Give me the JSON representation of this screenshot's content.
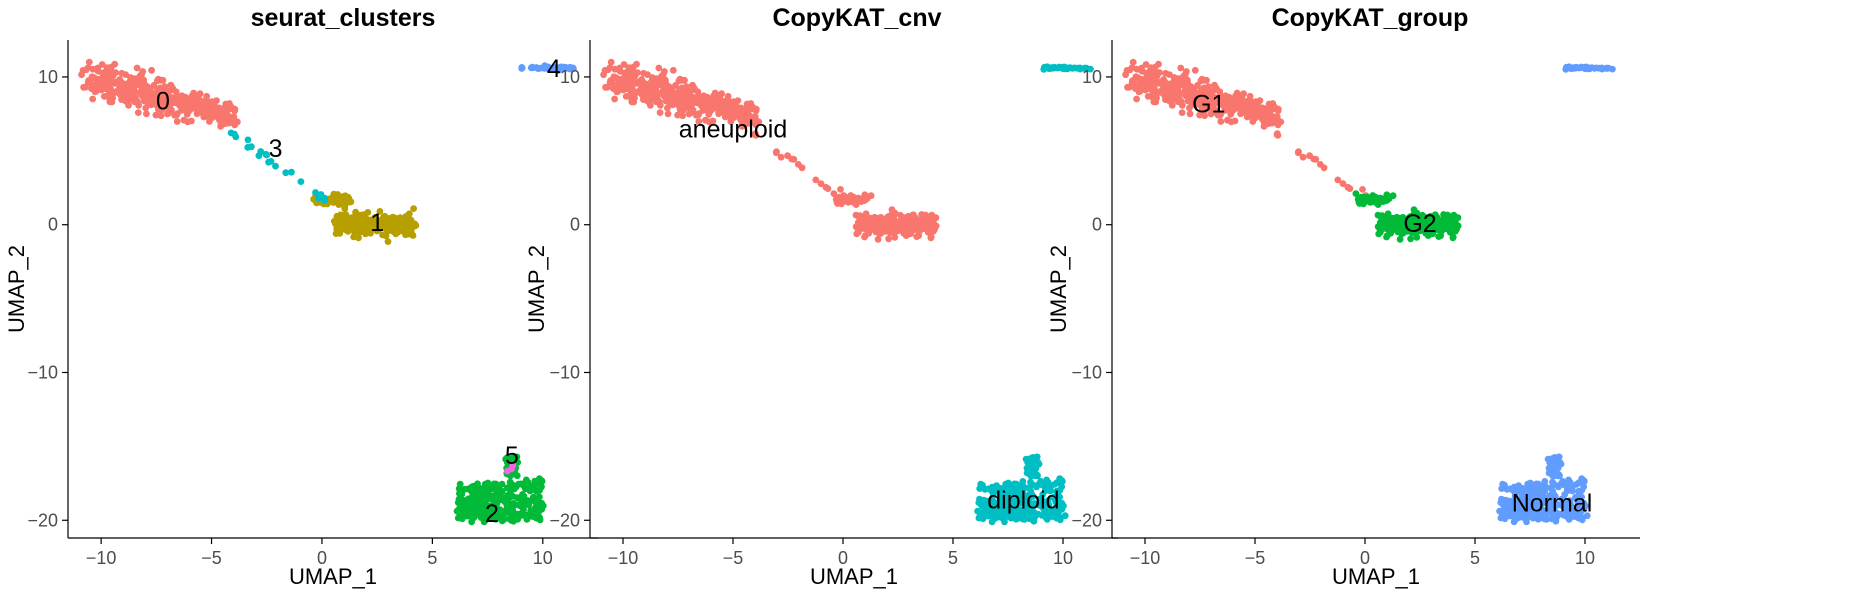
{
  "chart_data": [
    {
      "type": "scatter",
      "title": "seurat_clusters",
      "xlabel": "UMAP_1",
      "ylabel": "UMAP_2",
      "xlim": [
        -11.5,
        12.5
      ],
      "ylim": [
        -21.2,
        12.5
      ],
      "xticks": [
        -10,
        -5,
        0,
        5,
        10
      ],
      "yticks": [
        -20,
        -10,
        0,
        10
      ],
      "xtick_labels": [
        "−10",
        "−5",
        "0",
        "5",
        "10"
      ],
      "ytick_labels": [
        "−20",
        "−10",
        "0",
        "10"
      ],
      "grid": false,
      "legend": "none",
      "groups": [
        {
          "name": "0",
          "color": "#F8766D",
          "shape": "main",
          "count": 420
        },
        {
          "name": "1",
          "color": "#B79F00",
          "shape": "c1",
          "count": 300
        },
        {
          "name": "2",
          "color": "#00BA38",
          "shape": "normal",
          "count": 330
        },
        {
          "name": "3",
          "color": "#00BFC4",
          "shape": "bridge",
          "count": 22
        },
        {
          "name": "4",
          "color": "#619CFF",
          "shape": "top",
          "count": 40
        },
        {
          "name": "5",
          "color": "#F564E3",
          "shape": "c5",
          "count": 3
        }
      ],
      "labels": [
        {
          "text": "0",
          "x": -7.2,
          "y": 8.4
        },
        {
          "text": "3",
          "x": -2.1,
          "y": 5.2
        },
        {
          "text": "1",
          "x": 2.5,
          "y": 0.2
        },
        {
          "text": "4",
          "x": 10.5,
          "y": 10.6
        },
        {
          "text": "5",
          "x": 8.6,
          "y": -15.6
        },
        {
          "text": "2",
          "x": 7.7,
          "y": -19.5
        }
      ]
    },
    {
      "type": "scatter",
      "title": "CopyKAT_cnv",
      "xlabel": "UMAP_1",
      "ylabel": "UMAP_2",
      "xlim": [
        -11.5,
        12.5
      ],
      "ylim": [
        -21.2,
        12.5
      ],
      "xticks": [
        -10,
        -5,
        0,
        5,
        10
      ],
      "yticks": [
        -20,
        -10,
        0,
        10
      ],
      "xtick_labels": [
        "−10",
        "−5",
        "0",
        "5",
        "10"
      ],
      "ytick_labels": [
        "−20",
        "−10",
        "0",
        "10"
      ],
      "grid": false,
      "legend": "none",
      "groups": [
        {
          "name": "aneuploid",
          "color": "#F8766D",
          "shape": "main",
          "count": 420
        },
        {
          "name": "aneuploid",
          "color": "#F8766D",
          "shape": "bridge",
          "count": 22
        },
        {
          "name": "aneuploid",
          "color": "#F8766D",
          "shape": "c1",
          "count": 300
        },
        {
          "name": "diploid",
          "color": "#00BFC4",
          "shape": "top",
          "count": 40
        },
        {
          "name": "diploid",
          "color": "#00BFC4",
          "shape": "normal",
          "count": 330
        }
      ],
      "labels": [
        {
          "text": "aneuploid",
          "x": -5.0,
          "y": 6.5
        },
        {
          "text": "diploid",
          "x": 8.2,
          "y": -18.6
        }
      ]
    },
    {
      "type": "scatter",
      "title": "CopyKAT_group",
      "xlabel": "UMAP_1",
      "ylabel": "UMAP_2",
      "xlim": [
        -11.5,
        12.5
      ],
      "ylim": [
        -21.2,
        12.5
      ],
      "xticks": [
        -10,
        -5,
        0,
        5,
        10
      ],
      "yticks": [
        -20,
        -10,
        0,
        10
      ],
      "xtick_labels": [
        "−10",
        "−5",
        "0",
        "5",
        "10"
      ],
      "ytick_labels": [
        "−20",
        "−10",
        "0",
        "10"
      ],
      "grid": false,
      "legend": "none",
      "groups": [
        {
          "name": "G1",
          "color": "#F8766D",
          "shape": "main",
          "count": 420
        },
        {
          "name": "G1",
          "color": "#F8766D",
          "shape": "bridge",
          "count": 22
        },
        {
          "name": "G2",
          "color": "#00BA38",
          "shape": "c1",
          "count": 300
        },
        {
          "name": "Normal",
          "color": "#619CFF",
          "shape": "top",
          "count": 40
        },
        {
          "name": "Normal",
          "color": "#619CFF",
          "shape": "normal",
          "count": 330
        }
      ],
      "labels": [
        {
          "text": "G1",
          "x": -7.1,
          "y": 8.2
        },
        {
          "text": "G2",
          "x": 2.5,
          "y": 0.1
        },
        {
          "text": "Normal",
          "x": 8.5,
          "y": -18.8
        }
      ]
    }
  ]
}
